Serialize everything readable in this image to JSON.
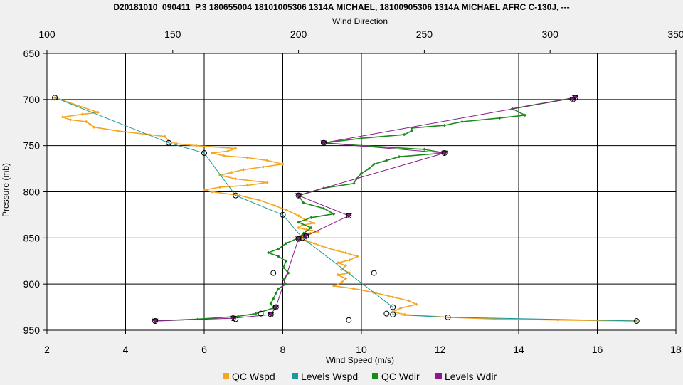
{
  "chart_data": {
    "type": "line",
    "title": "D20181010_090411_P.3 180655004 18101005306 1314A MICHAEL, 18100905306 1314A MICHAEL AFRC C-130J, ---",
    "x_top": {
      "label": "Wind Direction",
      "range": [
        100,
        350
      ],
      "ticks": [
        100,
        150,
        200,
        250,
        300,
        350
      ]
    },
    "x_bottom": {
      "label": "Wind Speed (m/s)",
      "range": [
        2,
        18
      ],
      "ticks": [
        2,
        4,
        6,
        8,
        10,
        12,
        14,
        16,
        18
      ]
    },
    "y": {
      "label": "Pressure (mb)",
      "range": [
        650,
        950
      ],
      "inverted": true,
      "ticks": [
        650,
        700,
        750,
        800,
        850,
        900,
        950
      ]
    },
    "grid": true,
    "legend_position": "bottom",
    "series": [
      {
        "name": "QC Wspd",
        "axis": "bottom",
        "color": "#f5a623",
        "marker": "diamond",
        "points": [
          [
            2.2,
            698
          ],
          [
            3.3,
            714
          ],
          [
            2.9,
            716
          ],
          [
            2.4,
            719
          ],
          [
            2.6,
            722
          ],
          [
            3.0,
            724
          ],
          [
            3.1,
            727
          ],
          [
            3.2,
            730
          ],
          [
            3.8,
            734
          ],
          [
            4.6,
            738
          ],
          [
            5.0,
            740
          ],
          [
            5.1,
            745
          ],
          [
            5.3,
            748
          ],
          [
            5.8,
            750
          ],
          [
            6.8,
            753
          ],
          [
            6.6,
            756
          ],
          [
            6.2,
            758
          ],
          [
            6.5,
            761
          ],
          [
            7.1,
            763
          ],
          [
            7.6,
            766
          ],
          [
            8.0,
            770
          ],
          [
            7.5,
            773
          ],
          [
            7.0,
            776
          ],
          [
            6.7,
            779
          ],
          [
            6.4,
            782
          ],
          [
            6.8,
            786
          ],
          [
            7.6,
            790
          ],
          [
            7.1,
            793
          ],
          [
            6.4,
            795
          ],
          [
            6.0,
            798
          ],
          [
            6.2,
            800
          ],
          [
            6.9,
            804
          ],
          [
            7.4,
            809
          ],
          [
            7.8,
            815
          ],
          [
            8.1,
            820
          ],
          [
            8.4,
            826
          ],
          [
            8.6,
            831
          ],
          [
            8.8,
            834
          ],
          [
            8.5,
            836
          ],
          [
            8.4,
            839
          ],
          [
            8.6,
            841
          ],
          [
            8.9,
            843
          ],
          [
            8.7,
            845
          ],
          [
            8.5,
            848
          ],
          [
            8.4,
            850
          ],
          [
            8.6,
            853
          ],
          [
            8.8,
            856
          ],
          [
            9.0,
            859
          ],
          [
            9.3,
            863
          ],
          [
            9.6,
            866
          ],
          [
            9.9,
            870
          ],
          [
            9.7,
            874
          ],
          [
            9.4,
            877
          ],
          [
            9.6,
            880
          ],
          [
            9.5,
            884
          ],
          [
            9.7,
            888
          ],
          [
            9.4,
            890
          ],
          [
            9.6,
            894
          ],
          [
            9.5,
            898
          ],
          [
            9.3,
            902
          ],
          [
            9.8,
            905
          ],
          [
            10.3,
            909
          ],
          [
            10.8,
            914
          ],
          [
            11.2,
            918
          ],
          [
            11.4,
            922
          ],
          [
            11.0,
            926
          ],
          [
            10.8,
            930
          ],
          [
            11.1,
            933
          ],
          [
            12.2,
            936
          ],
          [
            13.5,
            938
          ],
          [
            15.0,
            939
          ],
          [
            17.0,
            940
          ]
        ]
      },
      {
        "name": "Levels Wspd",
        "axis": "bottom",
        "color": "#1a9a9a",
        "marker": "circle",
        "points": [
          [
            2.2,
            698
          ],
          [
            5.1,
            747
          ],
          [
            6.0,
            758
          ],
          [
            6.8,
            804
          ],
          [
            8.0,
            825
          ],
          [
            8.5,
            850
          ],
          [
            10.8,
            925
          ],
          [
            10.8,
            933
          ],
          [
            12.2,
            936
          ],
          [
            17.0,
            940
          ]
        ]
      },
      {
        "name": "QC Wdir",
        "axis": "top",
        "color": "#1a8a1a",
        "marker": "diamond",
        "points": [
          [
            310,
            698
          ],
          [
            285,
            710
          ],
          [
            290,
            717
          ],
          [
            280,
            720
          ],
          [
            265,
            724
          ],
          [
            258,
            728
          ],
          [
            245,
            731
          ],
          [
            245,
            734
          ],
          [
            242,
            738
          ],
          [
            225,
            742
          ],
          [
            210,
            747
          ],
          [
            225,
            750
          ],
          [
            250,
            754
          ],
          [
            258,
            758
          ],
          [
            240,
            762
          ],
          [
            235,
            766
          ],
          [
            230,
            770
          ],
          [
            228,
            775
          ],
          [
            225,
            780
          ],
          [
            223,
            786
          ],
          [
            222,
            791
          ],
          [
            210,
            796
          ],
          [
            200,
            804
          ],
          [
            202,
            812
          ],
          [
            210,
            818
          ],
          [
            214,
            824
          ],
          [
            205,
            828
          ],
          [
            200,
            833
          ],
          [
            205,
            839
          ],
          [
            202,
            845
          ],
          [
            200,
            850
          ],
          [
            195,
            856
          ],
          [
            192,
            862
          ],
          [
            188,
            866
          ],
          [
            192,
            870
          ],
          [
            195,
            875
          ],
          [
            194,
            882
          ],
          [
            196,
            888
          ],
          [
            194,
            895
          ],
          [
            195,
            900
          ],
          [
            192,
            905
          ],
          [
            191,
            910
          ],
          [
            190,
            916
          ],
          [
            189,
            921
          ],
          [
            190,
            926
          ],
          [
            183,
            932
          ],
          [
            176,
            935
          ],
          [
            160,
            938
          ],
          [
            143,
            940
          ]
        ]
      },
      {
        "name": "Levels Wdir",
        "axis": "top",
        "color": "#8a1a8a",
        "marker": "triangle",
        "points": [
          [
            309,
            700
          ],
          [
            310,
            698
          ],
          [
            210,
            747
          ],
          [
            258,
            758
          ],
          [
            200,
            804
          ],
          [
            220,
            826
          ],
          [
            203,
            848
          ],
          [
            200,
            851
          ],
          [
            191,
            925
          ],
          [
            189,
            933
          ],
          [
            174,
            937
          ],
          [
            143,
            940
          ]
        ]
      }
    ],
    "extra_markers": [
      {
        "axis": "top",
        "points": [
          [
            190,
            888
          ],
          [
            230,
            888
          ],
          [
            185,
            932
          ],
          [
            235,
            932
          ],
          [
            175,
            938
          ],
          [
            220,
            939
          ]
        ]
      }
    ]
  }
}
